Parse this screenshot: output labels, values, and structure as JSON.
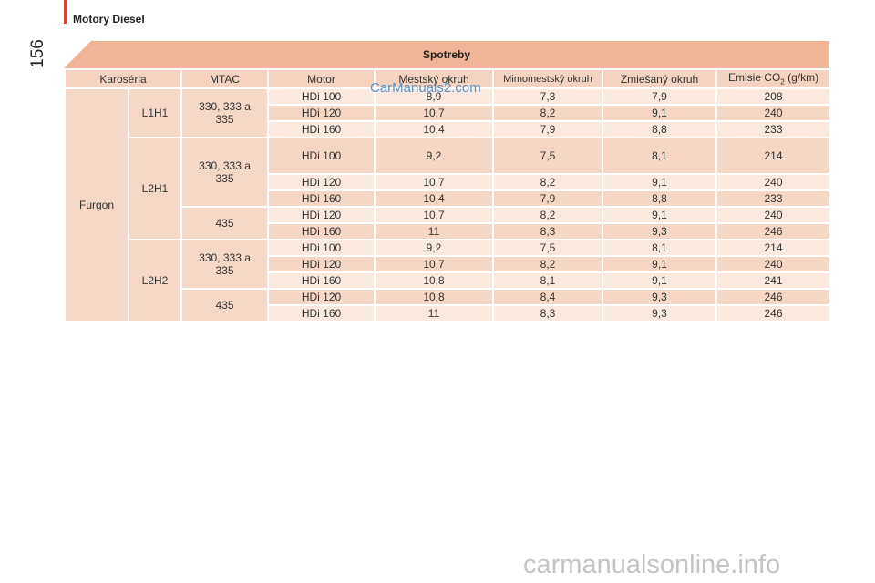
{
  "header": {
    "section": "Motory Diesel",
    "page_number": "156"
  },
  "table": {
    "title": "Spotreby",
    "columns": [
      "Karoséria",
      "MTAC",
      "Motor",
      "Mestský okruh",
      "Mimomestský okruh",
      "Zmiešaný okruh"
    ],
    "emission_column": {
      "text": "Emisie CO",
      "sub": "2",
      "unit": "(g/km)"
    },
    "body": "Furgon",
    "groups": [
      {
        "label": "L1H1",
        "mtac": [
          {
            "label": "330, 333 a 335",
            "rows": [
              [
                "HDi 100",
                "8,9",
                "7,3",
                "7,9",
                "208"
              ],
              [
                "HDi 120",
                "10,7",
                "8,2",
                "9,1",
                "240"
              ],
              [
                "HDi 160",
                "10,4",
                "7,9",
                "8,8",
                "233"
              ]
            ]
          }
        ]
      },
      {
        "label": "L2H1",
        "mtac": [
          {
            "label": "330, 333 a 335",
            "rows": [
              [
                "HDi 100",
                "9,2",
                "7,5",
                "8,1",
                "214"
              ],
              [
                "HDi 120",
                "10,7",
                "8,2",
                "9,1",
                "240"
              ],
              [
                "HDi 160",
                "10,4",
                "7,9",
                "8,8",
                "233"
              ]
            ]
          },
          {
            "label": "435",
            "rows": [
              [
                "HDi 120",
                "10,7",
                "8,2",
                "9,1",
                "240"
              ],
              [
                "HDi 160",
                "11",
                "8,3",
                "9,3",
                "246"
              ]
            ]
          }
        ]
      },
      {
        "label": "L2H2",
        "mtac": [
          {
            "label": "330, 333 a 335",
            "rows": [
              [
                "HDi 100",
                "9,2",
                "7,5",
                "8,1",
                "214"
              ],
              [
                "HDi 120",
                "10,7",
                "8,2",
                "9,1",
                "240"
              ],
              [
                "HDi 160",
                "10,8",
                "8,1",
                "9,1",
                "241"
              ]
            ]
          },
          {
            "label": "435",
            "rows": [
              [
                "HDi 120",
                "10,8",
                "8,4",
                "9,3",
                "246"
              ],
              [
                "HDi 160",
                "11",
                "8,3",
                "9,3",
                "246"
              ]
            ]
          }
        ]
      }
    ]
  },
  "watermarks": {
    "top": "CarManuals2.com",
    "bottom": "carmanualsonline.info"
  }
}
